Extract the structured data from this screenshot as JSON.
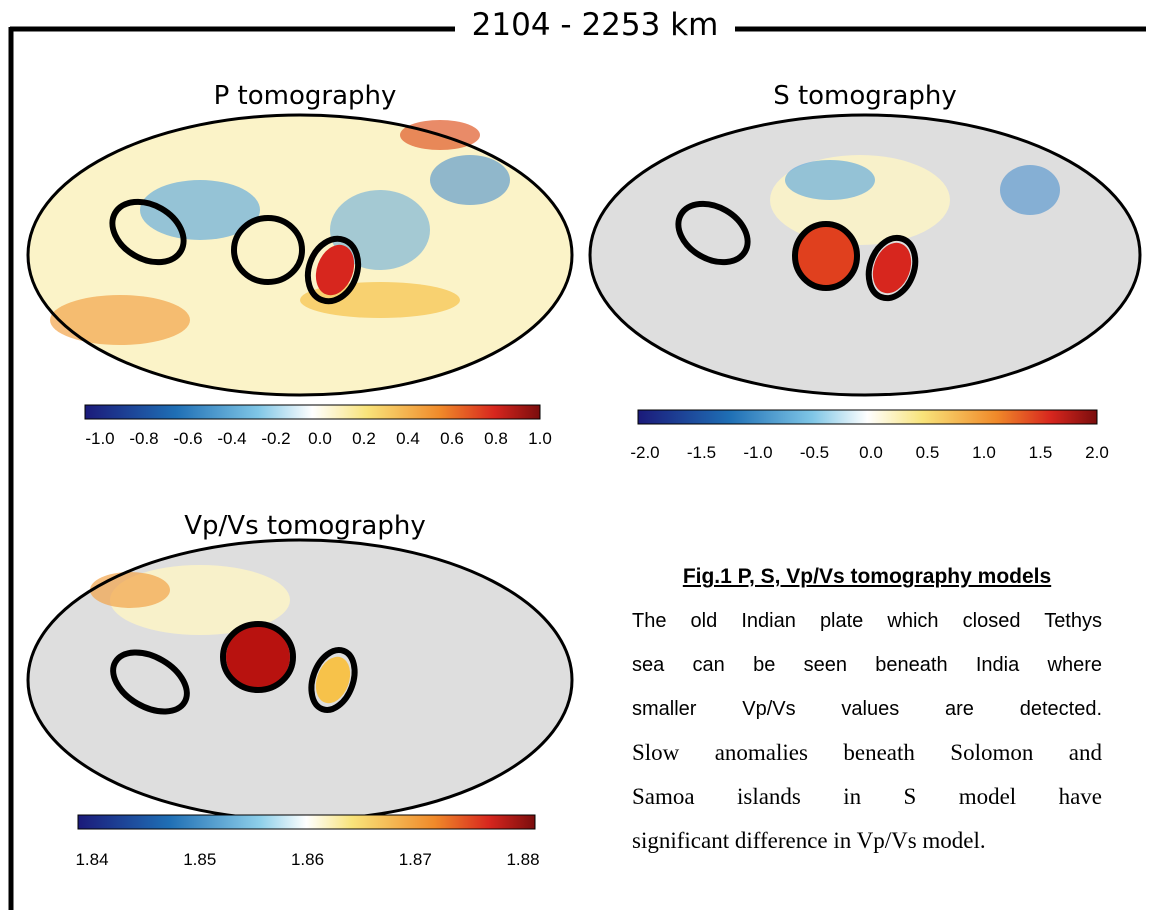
{
  "header": {
    "title": "2104 - 2253 km"
  },
  "panels": [
    {
      "title": "P tomography",
      "colorbar_ticks": [
        "-1.0",
        "-0.8",
        "-0.6",
        "-0.4",
        "-0.2",
        "0.0",
        "0.2",
        "0.4",
        "0.6",
        "0.8",
        "1.0"
      ]
    },
    {
      "title": "S tomography",
      "colorbar_ticks": [
        "-2.0",
        "-1.5",
        "-1.0",
        "-0.5",
        "0.0",
        "0.5",
        "1.0",
        "1.5",
        "2.0"
      ]
    },
    {
      "title": "Vp/Vs tomography",
      "colorbar_ticks": [
        "1.84",
        "1.85",
        "1.86",
        "1.87",
        "1.88"
      ]
    }
  ],
  "caption": {
    "title": "Fig.1 P, S, Vp/Vs tomography models",
    "lines": [
      "The old Indian plate which closed Tethys",
      "sea can be seen beneath India where",
      "smaller Vp/Vs values are detected.",
      "Slow anomalies beneath Solomon and",
      "Samoa islands in S model have",
      "significant difference in Vp/Vs model."
    ]
  }
}
